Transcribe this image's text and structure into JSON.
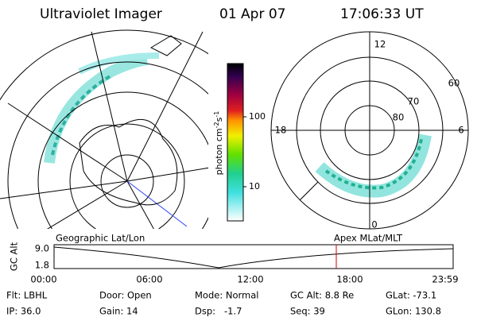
{
  "header": {
    "title": "Ultraviolet Imager",
    "date": "01 Apr 07",
    "time": "17:06:33 UT"
  },
  "colorbar": {
    "unit": [
      "photon cm",
      "-2",
      "s",
      "-1"
    ],
    "ticks": [
      "100",
      "10"
    ]
  },
  "left_panel": {
    "label": "Geographic Lat/Lon"
  },
  "right_panel": {
    "label": "Apex MLat/MLT",
    "mlt_labels": [
      "12",
      "18",
      "6",
      "0"
    ],
    "lat_labels": [
      "60",
      "70",
      "80"
    ]
  },
  "altitude_strip": {
    "axis_label": "GC Alt",
    "ticks": [
      "9.0",
      "1.8"
    ],
    "times": [
      "00:00",
      "06:00",
      "12:00",
      "18:00",
      "23:59"
    ]
  },
  "footer": {
    "rows": [
      [
        "Flt: LBHL",
        "Door: Open",
        "Mode: Normal",
        "GC Alt: 8.8 Re",
        "GLat: -73.1"
      ],
      [
        "IP: 36.0",
        "Gain: 14",
        "Dsp:   -1.7",
        "Seq: 39",
        "GLon: 130.8"
      ]
    ]
  }
}
